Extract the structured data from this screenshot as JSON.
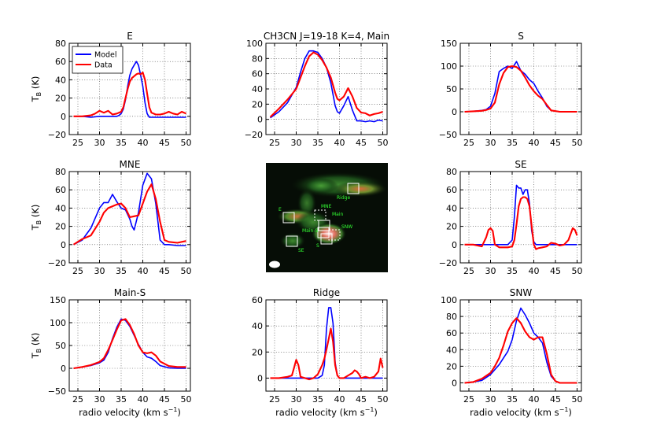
{
  "figure": {
    "ylabel": "T",
    "ylabel_sub": "B",
    "ylabel_unit": "(K)",
    "xlabel": "radio velocity (km s",
    "xlabel_sup": "−1",
    "xlabel_close": ")",
    "legend": [
      {
        "name": "Model",
        "color": "#0000ff"
      },
      {
        "name": "Data",
        "color": "#ff0000"
      }
    ]
  },
  "map_panel": {
    "labels": [
      "Ridge",
      "MNE",
      "Main",
      "E",
      "SNW",
      "Main-S",
      "S",
      "SE"
    ]
  },
  "chart_data": [
    {
      "id": "E",
      "type": "line",
      "title": "E",
      "xlim": [
        23,
        51
      ],
      "ylim": [
        -20,
        80
      ],
      "xticks": [
        25,
        30,
        35,
        40,
        45,
        50
      ],
      "yticks": [
        -20,
        0,
        20,
        40,
        60,
        80
      ],
      "show_ylabel": true,
      "show_xlabel": false,
      "legend": true,
      "series": [
        {
          "name": "Model",
          "color": "#0000ff",
          "x": [
            24,
            26,
            28,
            30,
            32,
            33,
            34,
            34.5,
            35,
            35.5,
            36,
            36.5,
            37,
            37.5,
            38,
            38.5,
            39,
            39.5,
            40,
            40.5,
            41,
            41.5,
            42,
            44,
            46,
            48,
            50
          ],
          "y": [
            0,
            0,
            -1,
            0,
            0,
            0,
            0,
            1,
            3,
            8,
            18,
            33,
            45,
            52,
            56,
            60,
            56,
            45,
            33,
            15,
            3,
            -1,
            -1,
            -1,
            -1,
            -1,
            -1
          ]
        },
        {
          "name": "Data",
          "color": "#ff0000",
          "x": [
            24,
            26,
            28,
            29,
            30,
            31,
            32,
            33,
            34,
            35,
            35.5,
            36,
            36.5,
            37,
            37.5,
            38,
            38.5,
            39,
            39.5,
            40,
            40.5,
            41,
            41.5,
            42,
            43,
            44,
            45,
            46,
            47,
            48,
            49,
            50
          ],
          "y": [
            0,
            0,
            1,
            3,
            6,
            4,
            6,
            2,
            3,
            5,
            10,
            20,
            30,
            38,
            42,
            44,
            46,
            47,
            46,
            48,
            40,
            25,
            10,
            4,
            2,
            2,
            3,
            5,
            3,
            2,
            5,
            3
          ]
        }
      ]
    },
    {
      "id": "Main",
      "type": "line",
      "title": "CH3CN J=19-18 K=4, Main",
      "xlim": [
        23,
        51
      ],
      "ylim": [
        -20,
        100
      ],
      "xticks": [
        25,
        30,
        35,
        40,
        45,
        50
      ],
      "yticks": [
        -20,
        0,
        20,
        40,
        60,
        80,
        100
      ],
      "show_ylabel": false,
      "show_xlabel": false,
      "legend": false,
      "series": [
        {
          "name": "Model",
          "color": "#0000ff",
          "x": [
            24,
            26,
            28,
            30,
            31,
            32,
            33,
            34,
            35,
            36,
            37,
            38,
            39,
            39.5,
            40,
            41,
            42,
            43,
            44,
            45,
            46,
            47,
            48,
            49,
            50
          ],
          "y": [
            2,
            10,
            22,
            42,
            62,
            80,
            90,
            90,
            88,
            80,
            68,
            48,
            18,
            10,
            8,
            18,
            30,
            12,
            -2,
            -2,
            -3,
            -2,
            -3,
            -1,
            -2
          ]
        },
        {
          "name": "Data",
          "color": "#ff0000",
          "x": [
            24,
            26,
            28,
            30,
            31,
            32,
            33,
            34,
            35,
            36,
            37,
            38,
            39,
            39.5,
            40,
            41,
            42,
            43,
            44,
            45,
            46,
            47,
            48,
            49,
            50
          ],
          "y": [
            3,
            14,
            26,
            40,
            55,
            70,
            83,
            88,
            85,
            78,
            68,
            55,
            35,
            27,
            25,
            30,
            41,
            30,
            15,
            9,
            8,
            5,
            7,
            8,
            10
          ]
        }
      ]
    },
    {
      "id": "S",
      "type": "line",
      "title": "S",
      "xlim": [
        23,
        51
      ],
      "ylim": [
        -50,
        150
      ],
      "xticks": [
        25,
        30,
        35,
        40,
        45,
        50
      ],
      "yticks": [
        -50,
        0,
        50,
        100,
        150
      ],
      "show_ylabel": false,
      "show_xlabel": false,
      "legend": false,
      "series": [
        {
          "name": "Model",
          "color": "#0000ff",
          "x": [
            24,
            26,
            28,
            29,
            30,
            31,
            32,
            33,
            34,
            35,
            36,
            37,
            38,
            39,
            40,
            41,
            42,
            43,
            44,
            46,
            48,
            50
          ],
          "y": [
            0,
            1,
            3,
            5,
            12,
            40,
            88,
            95,
            100,
            95,
            110,
            90,
            82,
            70,
            62,
            45,
            30,
            12,
            3,
            0,
            0,
            0
          ]
        },
        {
          "name": "Data",
          "color": "#ff0000",
          "x": [
            24,
            26,
            28,
            29,
            30,
            31,
            32,
            33,
            34,
            35,
            36,
            37,
            38,
            39,
            40,
            41,
            42,
            43,
            44,
            46,
            48,
            50
          ],
          "y": [
            0,
            1,
            2,
            4,
            7,
            20,
            60,
            85,
            98,
            100,
            98,
            90,
            75,
            58,
            45,
            35,
            28,
            15,
            3,
            0,
            0,
            0
          ]
        }
      ]
    },
    {
      "id": "MNE",
      "type": "line",
      "title": "MNE",
      "xlim": [
        23,
        51
      ],
      "ylim": [
        -20,
        80
      ],
      "xticks": [
        25,
        30,
        35,
        40,
        45,
        50
      ],
      "yticks": [
        -20,
        0,
        20,
        40,
        60,
        80
      ],
      "show_ylabel": true,
      "show_xlabel": false,
      "legend": false,
      "series": [
        {
          "name": "Model",
          "color": "#0000ff",
          "x": [
            24,
            26,
            28,
            30,
            31,
            32,
            33,
            34,
            35,
            36,
            37,
            37.5,
            38,
            39,
            40,
            41,
            42,
            43,
            44,
            45,
            46,
            48,
            50
          ],
          "y": [
            0,
            5,
            18,
            40,
            46,
            46,
            55,
            47,
            40,
            38,
            28,
            20,
            16,
            35,
            65,
            78,
            72,
            45,
            5,
            0,
            0,
            -1,
            -1
          ]
        },
        {
          "name": "Data",
          "color": "#ff0000",
          "x": [
            24,
            26,
            28,
            30,
            31,
            32,
            33,
            34,
            35,
            36,
            37,
            38,
            39,
            40,
            41,
            42,
            43,
            44,
            45,
            46,
            48,
            50
          ],
          "y": [
            0,
            6,
            10,
            25,
            35,
            40,
            42,
            44,
            45,
            40,
            30,
            31,
            32,
            45,
            58,
            66,
            50,
            25,
            5,
            3,
            2,
            4
          ]
        }
      ]
    },
    {
      "id": "SE",
      "type": "line",
      "title": "SE",
      "xlim": [
        23,
        51
      ],
      "ylim": [
        -20,
        80
      ],
      "xticks": [
        25,
        30,
        35,
        40,
        45,
        50
      ],
      "yticks": [
        -20,
        0,
        20,
        40,
        60,
        80
      ],
      "show_ylabel": false,
      "show_xlabel": false,
      "legend": false,
      "series": [
        {
          "name": "Model",
          "color": "#0000ff",
          "x": [
            24,
            26,
            28,
            30,
            32,
            34,
            35,
            35.5,
            36,
            36.5,
            37,
            37.5,
            38,
            38.5,
            39,
            39.5,
            40,
            40.5,
            41,
            42,
            44,
            46,
            48,
            50
          ],
          "y": [
            0,
            0,
            0,
            0,
            0,
            0,
            5,
            30,
            65,
            62,
            62,
            55,
            60,
            60,
            45,
            15,
            3,
            0,
            0,
            0,
            0,
            0,
            0,
            0
          ]
        },
        {
          "name": "Data",
          "color": "#ff0000",
          "x": [
            24,
            26,
            28,
            29,
            29.5,
            30,
            30.5,
            31,
            32,
            33,
            34,
            35,
            35.5,
            36,
            36.5,
            37,
            37.5,
            38,
            38.5,
            39,
            39.5,
            40,
            40.5,
            41,
            42,
            43,
            44,
            45,
            46,
            47,
            48,
            49,
            49.5,
            50
          ],
          "y": [
            0,
            0,
            -2,
            8,
            16,
            18,
            15,
            0,
            -3,
            -3,
            -3,
            -2,
            5,
            22,
            42,
            50,
            52,
            52,
            50,
            42,
            20,
            0,
            -5,
            -4,
            -3,
            -2,
            2,
            1,
            -1,
            0,
            5,
            18,
            16,
            10
          ]
        }
      ]
    },
    {
      "id": "Main-S",
      "type": "line",
      "title": "Main-S",
      "xlim": [
        23,
        51
      ],
      "ylim": [
        -50,
        150
      ],
      "xticks": [
        25,
        30,
        35,
        40,
        45,
        50
      ],
      "yticks": [
        -50,
        0,
        50,
        100,
        150
      ],
      "show_ylabel": true,
      "show_xlabel": true,
      "legend": false,
      "series": [
        {
          "name": "Model",
          "color": "#0000ff",
          "x": [
            24,
            26,
            28,
            30,
            31,
            32,
            33,
            34,
            35,
            36,
            37,
            38,
            39,
            40,
            41,
            42,
            43,
            44,
            46,
            48,
            50
          ],
          "y": [
            0,
            3,
            6,
            12,
            18,
            35,
            65,
            90,
            108,
            105,
            92,
            72,
            52,
            35,
            25,
            22,
            15,
            6,
            1,
            0,
            0
          ]
        },
        {
          "name": "Data",
          "color": "#ff0000",
          "x": [
            24,
            26,
            28,
            30,
            31,
            32,
            33,
            34,
            35,
            36,
            37,
            38,
            39,
            40,
            41,
            42,
            43,
            44,
            46,
            48,
            50
          ],
          "y": [
            0,
            3,
            7,
            14,
            22,
            40,
            62,
            85,
            105,
            108,
            95,
            75,
            50,
            35,
            33,
            35,
            28,
            15,
            5,
            3,
            3
          ]
        }
      ]
    },
    {
      "id": "Ridge",
      "type": "line",
      "title": "Ridge",
      "xlim": [
        23,
        51
      ],
      "ylim": [
        -10,
        60
      ],
      "xticks": [
        25,
        30,
        35,
        40,
        45,
        50
      ],
      "yticks": [
        0,
        20,
        40,
        60
      ],
      "show_ylabel": false,
      "show_xlabel": true,
      "legend": false,
      "series": [
        {
          "name": "Model",
          "color": "#0000ff",
          "x": [
            24,
            26,
            28,
            30,
            32,
            34,
            35,
            36,
            36.5,
            37,
            37.5,
            38,
            38.5,
            39,
            39.5,
            40,
            41,
            42,
            44,
            46,
            48,
            50
          ],
          "y": [
            0,
            0,
            0,
            0,
            0,
            0,
            0,
            2,
            10,
            38,
            54,
            54,
            42,
            12,
            2,
            0,
            0,
            0,
            0,
            0,
            0,
            0
          ]
        },
        {
          "name": "Data",
          "color": "#ff0000",
          "x": [
            24,
            26,
            28,
            29,
            29.5,
            30,
            30.5,
            31,
            32,
            33,
            34,
            35,
            36,
            36.5,
            37,
            37.5,
            38,
            38.5,
            39,
            39.5,
            40,
            41,
            42,
            43,
            43.5,
            44,
            44.5,
            45,
            46,
            47,
            48,
            49,
            49.5,
            50
          ],
          "y": [
            0,
            0,
            1,
            2,
            8,
            14,
            10,
            1,
            0,
            -1,
            0,
            3,
            10,
            15,
            22,
            30,
            38,
            28,
            10,
            2,
            0,
            0,
            2,
            4,
            6,
            5,
            3,
            0,
            1,
            0,
            1,
            5,
            15,
            8
          ]
        }
      ]
    },
    {
      "id": "SNW",
      "type": "line",
      "title": "SNW",
      "xlim": [
        23,
        51
      ],
      "ylim": [
        -10,
        100
      ],
      "xticks": [
        25,
        30,
        35,
        40,
        45,
        50
      ],
      "yticks": [
        0,
        20,
        40,
        60,
        80,
        100
      ],
      "show_ylabel": false,
      "show_xlabel": true,
      "legend": false,
      "series": [
        {
          "name": "Model",
          "color": "#0000ff",
          "x": [
            24,
            26,
            28,
            30,
            31,
            32,
            33,
            34,
            35,
            36,
            37,
            38,
            39,
            40,
            41,
            42,
            43,
            44,
            45,
            46,
            48,
            50
          ],
          "y": [
            0,
            1,
            3,
            10,
            16,
            22,
            30,
            38,
            52,
            75,
            90,
            82,
            72,
            60,
            55,
            48,
            25,
            8,
            2,
            0,
            0,
            0
          ]
        },
        {
          "name": "Data",
          "color": "#ff0000",
          "x": [
            24,
            26,
            28,
            30,
            31,
            32,
            33,
            34,
            35,
            36,
            37,
            38,
            39,
            40,
            41,
            42,
            43,
            44,
            45,
            46,
            48,
            50
          ],
          "y": [
            0,
            1,
            5,
            12,
            20,
            30,
            45,
            62,
            72,
            78,
            72,
            62,
            55,
            52,
            55,
            55,
            35,
            10,
            2,
            0,
            0,
            0
          ]
        }
      ]
    }
  ]
}
